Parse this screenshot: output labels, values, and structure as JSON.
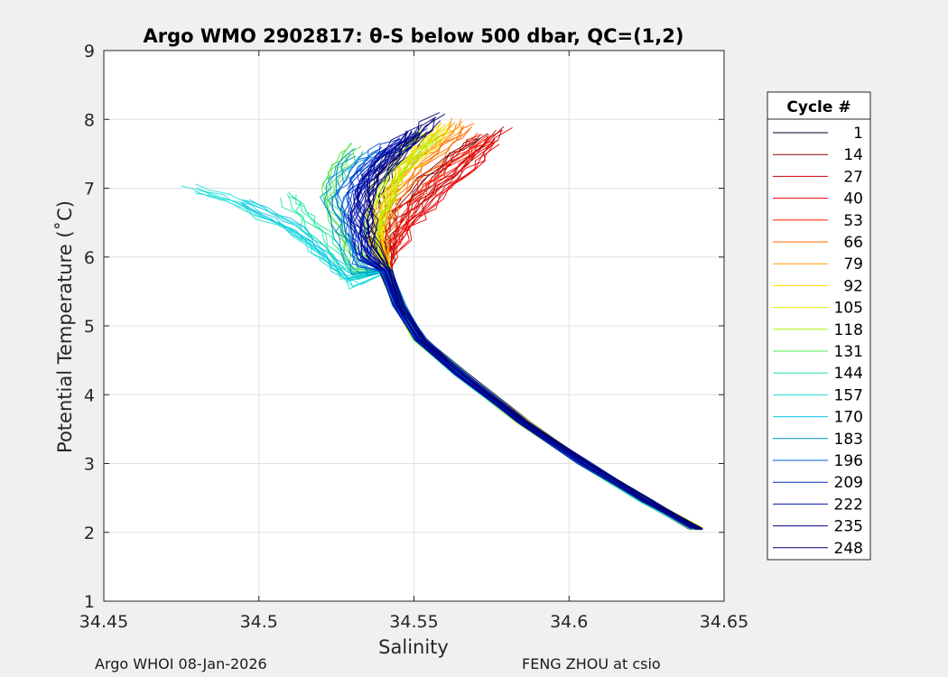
{
  "chart_data": {
    "type": "line",
    "title": "Argo WMO 2902817: θ-S below 500 dbar,  QC=(1,2)",
    "xlabel": "Salinity",
    "ylabel": "Potential Temperature (˚C)",
    "xlim": [
      34.45,
      34.65
    ],
    "ylim": [
      1,
      9
    ],
    "xticks": [
      "34.45",
      "34.5",
      "34.55",
      "34.6",
      "34.65"
    ],
    "xtick_values": [
      34.45,
      34.5,
      34.55,
      34.6,
      34.65
    ],
    "yticks": [
      "1",
      "2",
      "3",
      "4",
      "5",
      "6",
      "7",
      "8",
      "9"
    ],
    "ytick_values": [
      1,
      2,
      3,
      4,
      5,
      6,
      7,
      8,
      9
    ],
    "grid": true,
    "legend": {
      "title": "Cycle #",
      "placement": "right-outside",
      "entries": [
        "1",
        "14",
        "27",
        "40",
        "53",
        "66",
        "79",
        "92",
        "105",
        "118",
        "131",
        "144",
        "157",
        "170",
        "183",
        "196",
        "209",
        "222",
        "235",
        "248"
      ],
      "colors": [
        "#000020",
        "#8b0000",
        "#c80000",
        "#e60000",
        "#ff1a00",
        "#ff6a00",
        "#ff9900",
        "#ffd000",
        "#e6f000",
        "#a8f000",
        "#4ce84c",
        "#20e8a0",
        "#1ee0d8",
        "#10c8e0",
        "#0090c8",
        "#0060e0",
        "#0030c8",
        "#0010a8",
        "#000090",
        "#000070"
      ]
    },
    "series": [
      {
        "color": "#000020",
        "points": [
          [
            34.5405,
            6.0
          ],
          [
            34.537,
            6.4
          ],
          [
            34.5375,
            6.9
          ],
          [
            34.544,
            7.4
          ],
          [
            34.552,
            7.8
          ]
        ]
      },
      {
        "color": "#8b0000",
        "points": [
          [
            34.541,
            6.3
          ],
          [
            34.545,
            6.7
          ],
          [
            34.553,
            7.1
          ],
          [
            34.562,
            7.45
          ],
          [
            34.571,
            7.75
          ]
        ]
      },
      {
        "color": "#c80000",
        "points": [
          [
            34.5415,
            6.1
          ],
          [
            34.547,
            6.5
          ],
          [
            34.556,
            6.95
          ],
          [
            34.566,
            7.35
          ],
          [
            34.578,
            7.85
          ]
        ]
      },
      {
        "color": "#e60000",
        "points": [
          [
            34.542,
            6.05
          ],
          [
            34.548,
            6.45
          ],
          [
            34.557,
            6.9
          ],
          [
            34.567,
            7.3
          ],
          [
            34.576,
            7.7
          ]
        ]
      },
      {
        "color": "#ff1a00",
        "points": [
          [
            34.5425,
            6.2
          ],
          [
            34.546,
            6.6
          ],
          [
            34.554,
            7.05
          ],
          [
            34.565,
            7.45
          ],
          [
            34.573,
            7.75
          ]
        ]
      },
      {
        "color": "#ff6a00",
        "points": [
          [
            34.5395,
            6.3
          ],
          [
            34.543,
            6.8
          ],
          [
            34.55,
            7.2
          ],
          [
            34.559,
            7.55
          ],
          [
            34.568,
            7.9
          ]
        ]
      },
      {
        "color": "#ff9900",
        "points": [
          [
            34.539,
            6.4
          ],
          [
            34.542,
            6.9
          ],
          [
            34.548,
            7.3
          ],
          [
            34.557,
            7.65
          ],
          [
            34.564,
            7.95
          ]
        ]
      },
      {
        "color": "#ffd000",
        "points": [
          [
            34.5385,
            6.3
          ],
          [
            34.5405,
            6.8
          ],
          [
            34.546,
            7.25
          ],
          [
            34.553,
            7.6
          ],
          [
            34.561,
            7.9
          ]
        ]
      },
      {
        "color": "#e6f000",
        "points": [
          [
            34.5375,
            6.2
          ],
          [
            34.539,
            6.7
          ],
          [
            34.544,
            7.15
          ],
          [
            34.551,
            7.5
          ],
          [
            34.559,
            7.85
          ]
        ]
      },
      {
        "color": "#a8f000",
        "points": [
          [
            34.536,
            6.1
          ],
          [
            34.5375,
            6.6
          ],
          [
            34.542,
            7.05
          ],
          [
            34.548,
            7.45
          ],
          [
            34.555,
            7.8
          ]
        ]
      },
      {
        "color": "#4ce84c",
        "points": [
          [
            34.531,
            5.8
          ],
          [
            34.526,
            6.4
          ],
          [
            34.522,
            6.9
          ],
          [
            34.525,
            7.3
          ],
          [
            34.531,
            7.6
          ]
        ]
      },
      {
        "color": "#20e8a0",
        "points": [
          [
            34.53,
            5.7
          ],
          [
            34.523,
            6.2
          ],
          [
            34.515,
            6.6
          ],
          [
            34.51,
            6.9
          ]
        ]
      },
      {
        "color": "#1ee0d8",
        "points": [
          [
            34.529,
            5.6
          ],
          [
            34.52,
            6.0
          ],
          [
            34.508,
            6.4
          ],
          [
            34.494,
            6.75
          ],
          [
            34.478,
            7.0
          ]
        ]
      },
      {
        "color": "#10c8e0",
        "points": [
          [
            34.53,
            5.7
          ],
          [
            34.521,
            6.1
          ],
          [
            34.509,
            6.5
          ],
          [
            34.496,
            6.8
          ]
        ]
      },
      {
        "color": "#0090c8",
        "points": [
          [
            34.5325,
            5.8
          ],
          [
            34.527,
            6.3
          ],
          [
            34.523,
            6.8
          ],
          [
            34.526,
            7.2
          ],
          [
            34.533,
            7.5
          ]
        ]
      },
      {
        "color": "#0060e0",
        "points": [
          [
            34.5335,
            5.9
          ],
          [
            34.53,
            6.4
          ],
          [
            34.528,
            6.9
          ],
          [
            34.533,
            7.3
          ],
          [
            34.541,
            7.6
          ]
        ]
      },
      {
        "color": "#0030c8",
        "points": [
          [
            34.534,
            6.0
          ],
          [
            34.531,
            6.5
          ],
          [
            34.531,
            7.0
          ],
          [
            34.537,
            7.4
          ],
          [
            34.546,
            7.7
          ]
        ]
      },
      {
        "color": "#0010a8",
        "points": [
          [
            34.535,
            6.1
          ],
          [
            34.533,
            6.6
          ],
          [
            34.535,
            7.1
          ],
          [
            34.543,
            7.5
          ],
          [
            34.553,
            7.85
          ]
        ]
      },
      {
        "color": "#000090",
        "points": [
          [
            34.5345,
            6.0
          ],
          [
            34.532,
            6.5
          ],
          [
            34.533,
            7.0
          ],
          [
            34.539,
            7.4
          ],
          [
            34.549,
            7.8
          ]
        ]
      },
      {
        "color": "#000070",
        "points": [
          [
            34.5355,
            6.2
          ],
          [
            34.534,
            6.7
          ],
          [
            34.537,
            7.2
          ],
          [
            34.546,
            7.6
          ],
          [
            34.556,
            8.05
          ]
        ]
      }
    ],
    "common_branch": [
      [
        34.541,
        5.8
      ],
      [
        34.545,
        5.3
      ],
      [
        34.552,
        4.8
      ],
      [
        34.565,
        4.3
      ],
      [
        34.585,
        3.6
      ],
      [
        34.605,
        3.0
      ],
      [
        34.625,
        2.45
      ],
      [
        34.641,
        2.05
      ]
    ]
  },
  "footer": {
    "left": "Argo WHOI 08-Jan-2026",
    "right": "FENG ZHOU at csio"
  }
}
